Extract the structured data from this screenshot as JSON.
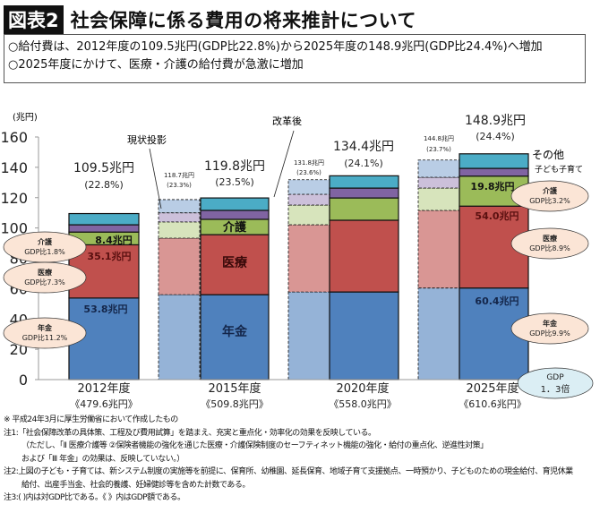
{
  "header": {
    "badge": "図表2",
    "title": "社会保障に係る費用の将来推計について"
  },
  "summary": [
    "○給付費は、2012年度の109.5兆円(GDP比22.8%)から2025年度の148.9兆円(GDP比24.4%)へ増加",
    "○2025年度にかけて、医療・介護の給付費が急激に増加"
  ],
  "chart_data": {
    "type": "bar",
    "stacked": true,
    "ylabel": "(兆円)",
    "ylim": [
      0,
      160
    ],
    "yticks": [
      "0",
      "20",
      "40",
      "60",
      "80",
      "100",
      "120",
      "140",
      "160"
    ],
    "categories": [
      "2012年度",
      "2015年度 現状投影",
      "2015年度 改革後",
      "2020年度 現状投影",
      "2020年度 改革後",
      "2025年度 現状投影",
      "2025年度 改革後"
    ],
    "segments": [
      "年金",
      "医療",
      "介護",
      "子ども子育て",
      "その他"
    ],
    "series": [
      {
        "name": "年金",
        "values": [
          53.8,
          56.0,
          56.0,
          57.8,
          57.8,
          60.4,
          60.4
        ],
        "color": "#4f81bd",
        "light": "#95b3d7"
      },
      {
        "name": "医療",
        "values": [
          35.1,
          37.3,
          39.6,
          44.3,
          47.3,
          51.2,
          54.0
        ],
        "color": "#c0504d",
        "light": "#d99694"
      },
      {
        "name": "介護",
        "values": [
          8.4,
          10.7,
          10.1,
          13.0,
          14.7,
          14.7,
          19.8
        ],
        "color": "#9bbb59",
        "light": "#d7e4bc"
      },
      {
        "name": "子ども子育て",
        "values": [
          4.8,
          6.0,
          5.9,
          7.1,
          6.5,
          7.1,
          5.1
        ],
        "color": "#8064a2",
        "light": "#ccc0da"
      },
      {
        "name": "その他",
        "values": [
          7.4,
          8.7,
          8.2,
          9.6,
          8.1,
          11.4,
          9.6
        ],
        "color": "#4bacc6",
        "light": "#b9cde5"
      }
    ],
    "totals": [
      {
        "amount": "109.5兆円",
        "pct": "(22.8%)"
      },
      {
        "amount": "118.7兆円",
        "pct": "(23.3%)"
      },
      {
        "amount": "119.8兆円",
        "pct": "(23.5%)"
      },
      {
        "amount": "131.8兆円",
        "pct": "(23.6%)"
      },
      {
        "amount": "134.4兆円",
        "pct": "(24.1%)"
      },
      {
        "amount": "144.8兆円",
        "pct": "(23.7%)"
      },
      {
        "amount": "148.9兆円",
        "pct": "(24.4%)"
      }
    ],
    "years": [
      {
        "year": "2012年度",
        "gdp": "《479.6兆円》"
      },
      {
        "year": "2015年度",
        "gdp": "《509.8兆円》"
      },
      {
        "year": "2020年度",
        "gdp": "《558.0兆円》"
      },
      {
        "year": "2025年度",
        "gdp": "《610.6兆円》"
      }
    ],
    "annotations": {
      "current": "現状投影",
      "reform": "改革後",
      "other": "その他",
      "kids": "子ども子育て",
      "v2012_care": "8.4兆円",
      "v2012_medical": "35.1兆円",
      "v2012_pension": "53.8兆円",
      "l_care": "介護",
      "l_medical": "医療",
      "l_pension": "年金",
      "v2025_care": "19.8兆円",
      "v2025_medical": "54.0兆円",
      "v2025_pension": "60.4兆円",
      "e2012": [
        {
          "name": "介護",
          "gdp": "GDP比1.8%"
        },
        {
          "name": "医療",
          "gdp": "GDP比7.3%"
        },
        {
          "name": "年金",
          "gdp": "GDP比11.2%"
        }
      ],
      "e2025": [
        {
          "name": "介護",
          "gdp": "GDP比3.2%"
        },
        {
          "name": "医療",
          "gdp": "GDP比8.9%"
        },
        {
          "name": "年金",
          "gdp": "GDP比9.9%"
        }
      ],
      "gdp_label": "GDP",
      "gdp_ratio": "1．3倍"
    }
  },
  "notes": [
    "※ 平成24年3月に厚生労働省において作成したもの",
    "注1:「社会保障改革の具体策、工程及び費用試算」を踏まえ、充実と重点化・効率化の効果を反映している。",
    "（ただし、「Ⅱ 医療介護等 ②保険者機能の強化を通じた医療・介護保険制度のセーフティネット機能の強化・給付の重点化、逆進性対策」",
    "および「Ⅲ 年金」の効果は、反映していない。）",
    "注2:上図の子ども・子育ては、新システム制度の実施等を前提に、保育所、幼稚園、延長保育、地域子育て支援拠点、一時預かり、子どものための現金給付、育児休業",
    "給付、出産手当金、社会的養護、妊婦健診等を含めた計数である。",
    "注3:(  )内は対GDP比である。《  》内はGDP額である。"
  ]
}
